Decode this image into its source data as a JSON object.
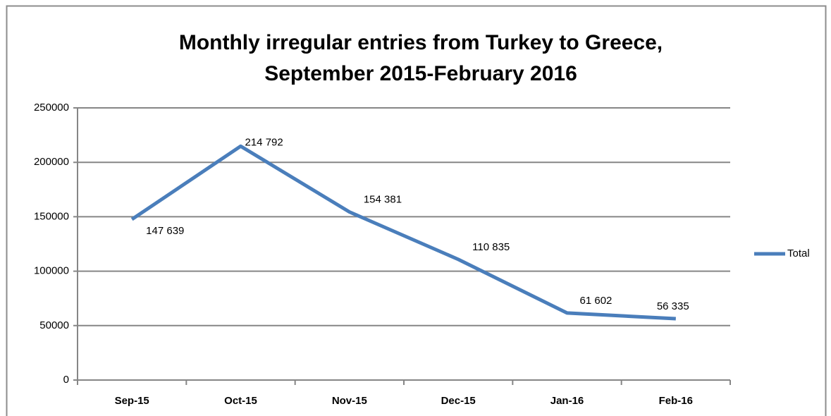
{
  "chart_data": {
    "type": "line",
    "title": [
      "Monthly irregular entries from Turkey to Greece,",
      "September 2015-February 2016"
    ],
    "categories": [
      "Sep-15",
      "Oct-15",
      "Nov-15",
      "Dec-15",
      "Jan-16",
      "Feb-16"
    ],
    "series": [
      {
        "name": "Total",
        "color": "#4a7ebb",
        "values": [
          147639,
          214792,
          154381,
          110835,
          61602,
          56335
        ],
        "value_labels": [
          "147 639",
          "214 792",
          "154 381",
          "110 835",
          "61 602",
          "56 335"
        ]
      }
    ],
    "ylim": [
      0,
      250000
    ],
    "yticks": [
      0,
      50000,
      100000,
      150000,
      200000,
      250000
    ],
    "grid": true,
    "legend": "right"
  }
}
